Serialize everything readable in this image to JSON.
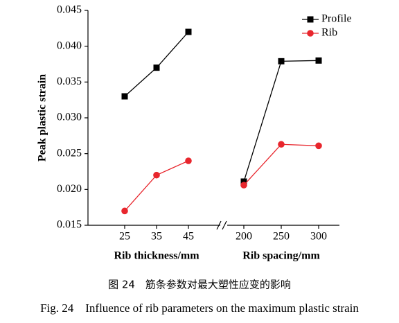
{
  "chart_data": {
    "type": "line",
    "ylabel": "Peak plastic strain",
    "ylim": [
      0.015,
      0.045
    ],
    "yticks": [
      0.015,
      {
        "value": 0.02,
        "label": "0.020"
      },
      0.025,
      {
        "value": 0.03,
        "label": "0.030"
      },
      0.035,
      {
        "value": 0.04,
        "label": "0.040"
      },
      0.045
    ],
    "legend": "upper right",
    "panels": [
      {
        "xlabel": "Rib thickness/mm",
        "categories": [
          "25",
          "35",
          "45"
        ],
        "series": [
          {
            "name": "Profile",
            "color": "#000000",
            "marker": "square",
            "values": [
              0.033,
              0.037,
              0.042
            ]
          },
          {
            "name": "Rib",
            "color": "#e8262d",
            "marker": "circle",
            "values": [
              0.017,
              0.022,
              0.024
            ]
          }
        ]
      },
      {
        "xlabel": "Rib spacing/mm",
        "categories": [
          "200",
          "250",
          "300"
        ],
        "series": [
          {
            "color": "#000000",
            "marker": "square",
            "values": [
              0.0211,
              0.0379,
              0.038
            ]
          },
          {
            "color": "#e8262d",
            "marker": "circle",
            "values": [
              0.0206,
              0.0263,
              0.0261
            ]
          }
        ]
      }
    ]
  },
  "caption": {
    "zh": "图 24　筋条参数对最大塑性应变的影响",
    "en": "Fig. 24　Influence of rib parameters on the maximum plastic strain"
  }
}
